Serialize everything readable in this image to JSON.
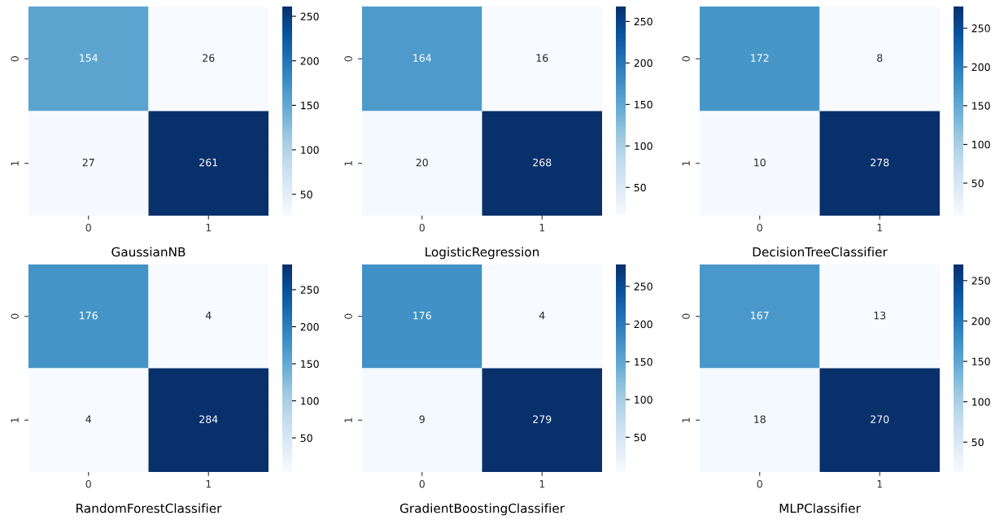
{
  "chart_data": [
    {
      "type": "heatmap",
      "xlabel": "GaussianNB",
      "categories": [
        "0",
        "1"
      ],
      "y_categories": [
        "0",
        "1"
      ],
      "cells": [
        [
          154,
          26
        ],
        [
          27,
          261
        ]
      ],
      "clim": [
        26,
        261
      ],
      "cticks": [
        50,
        100,
        150,
        200,
        250
      ],
      "data_labels": true
    },
    {
      "type": "heatmap",
      "xlabel": "LogisticRegression",
      "categories": [
        "0",
        "1"
      ],
      "y_categories": [
        "0",
        "1"
      ],
      "cells": [
        [
          164,
          16
        ],
        [
          20,
          268
        ]
      ],
      "clim": [
        16,
        268
      ],
      "cticks": [
        50,
        100,
        150,
        200,
        250
      ],
      "data_labels": true
    },
    {
      "type": "heatmap",
      "xlabel": "DecisionTreeClassifier",
      "categories": [
        "0",
        "1"
      ],
      "y_categories": [
        "0",
        "1"
      ],
      "cells": [
        [
          172,
          8
        ],
        [
          10,
          278
        ]
      ],
      "clim": [
        8,
        278
      ],
      "cticks": [
        50,
        100,
        150,
        200,
        250
      ],
      "data_labels": true
    },
    {
      "type": "heatmap",
      "xlabel": "RandomForestClassifier",
      "categories": [
        "0",
        "1"
      ],
      "y_categories": [
        "0",
        "1"
      ],
      "cells": [
        [
          176,
          4
        ],
        [
          4,
          284
        ]
      ],
      "clim": [
        4,
        284
      ],
      "cticks": [
        50,
        100,
        150,
        200,
        250
      ],
      "data_labels": true
    },
    {
      "type": "heatmap",
      "xlabel": "GradientBoostingClassifier",
      "categories": [
        "0",
        "1"
      ],
      "y_categories": [
        "0",
        "1"
      ],
      "cells": [
        [
          176,
          4
        ],
        [
          9,
          279
        ]
      ],
      "clim": [
        4,
        279
      ],
      "cticks": [
        50,
        100,
        150,
        200,
        250
      ],
      "data_labels": true
    },
    {
      "type": "heatmap",
      "xlabel": "MLPClassifier",
      "categories": [
        "0",
        "1"
      ],
      "y_categories": [
        "0",
        "1"
      ],
      "cells": [
        [
          167,
          13
        ],
        [
          18,
          270
        ]
      ],
      "clim": [
        13,
        270
      ],
      "cticks": [
        50,
        100,
        150,
        200,
        250
      ],
      "data_labels": true
    }
  ]
}
